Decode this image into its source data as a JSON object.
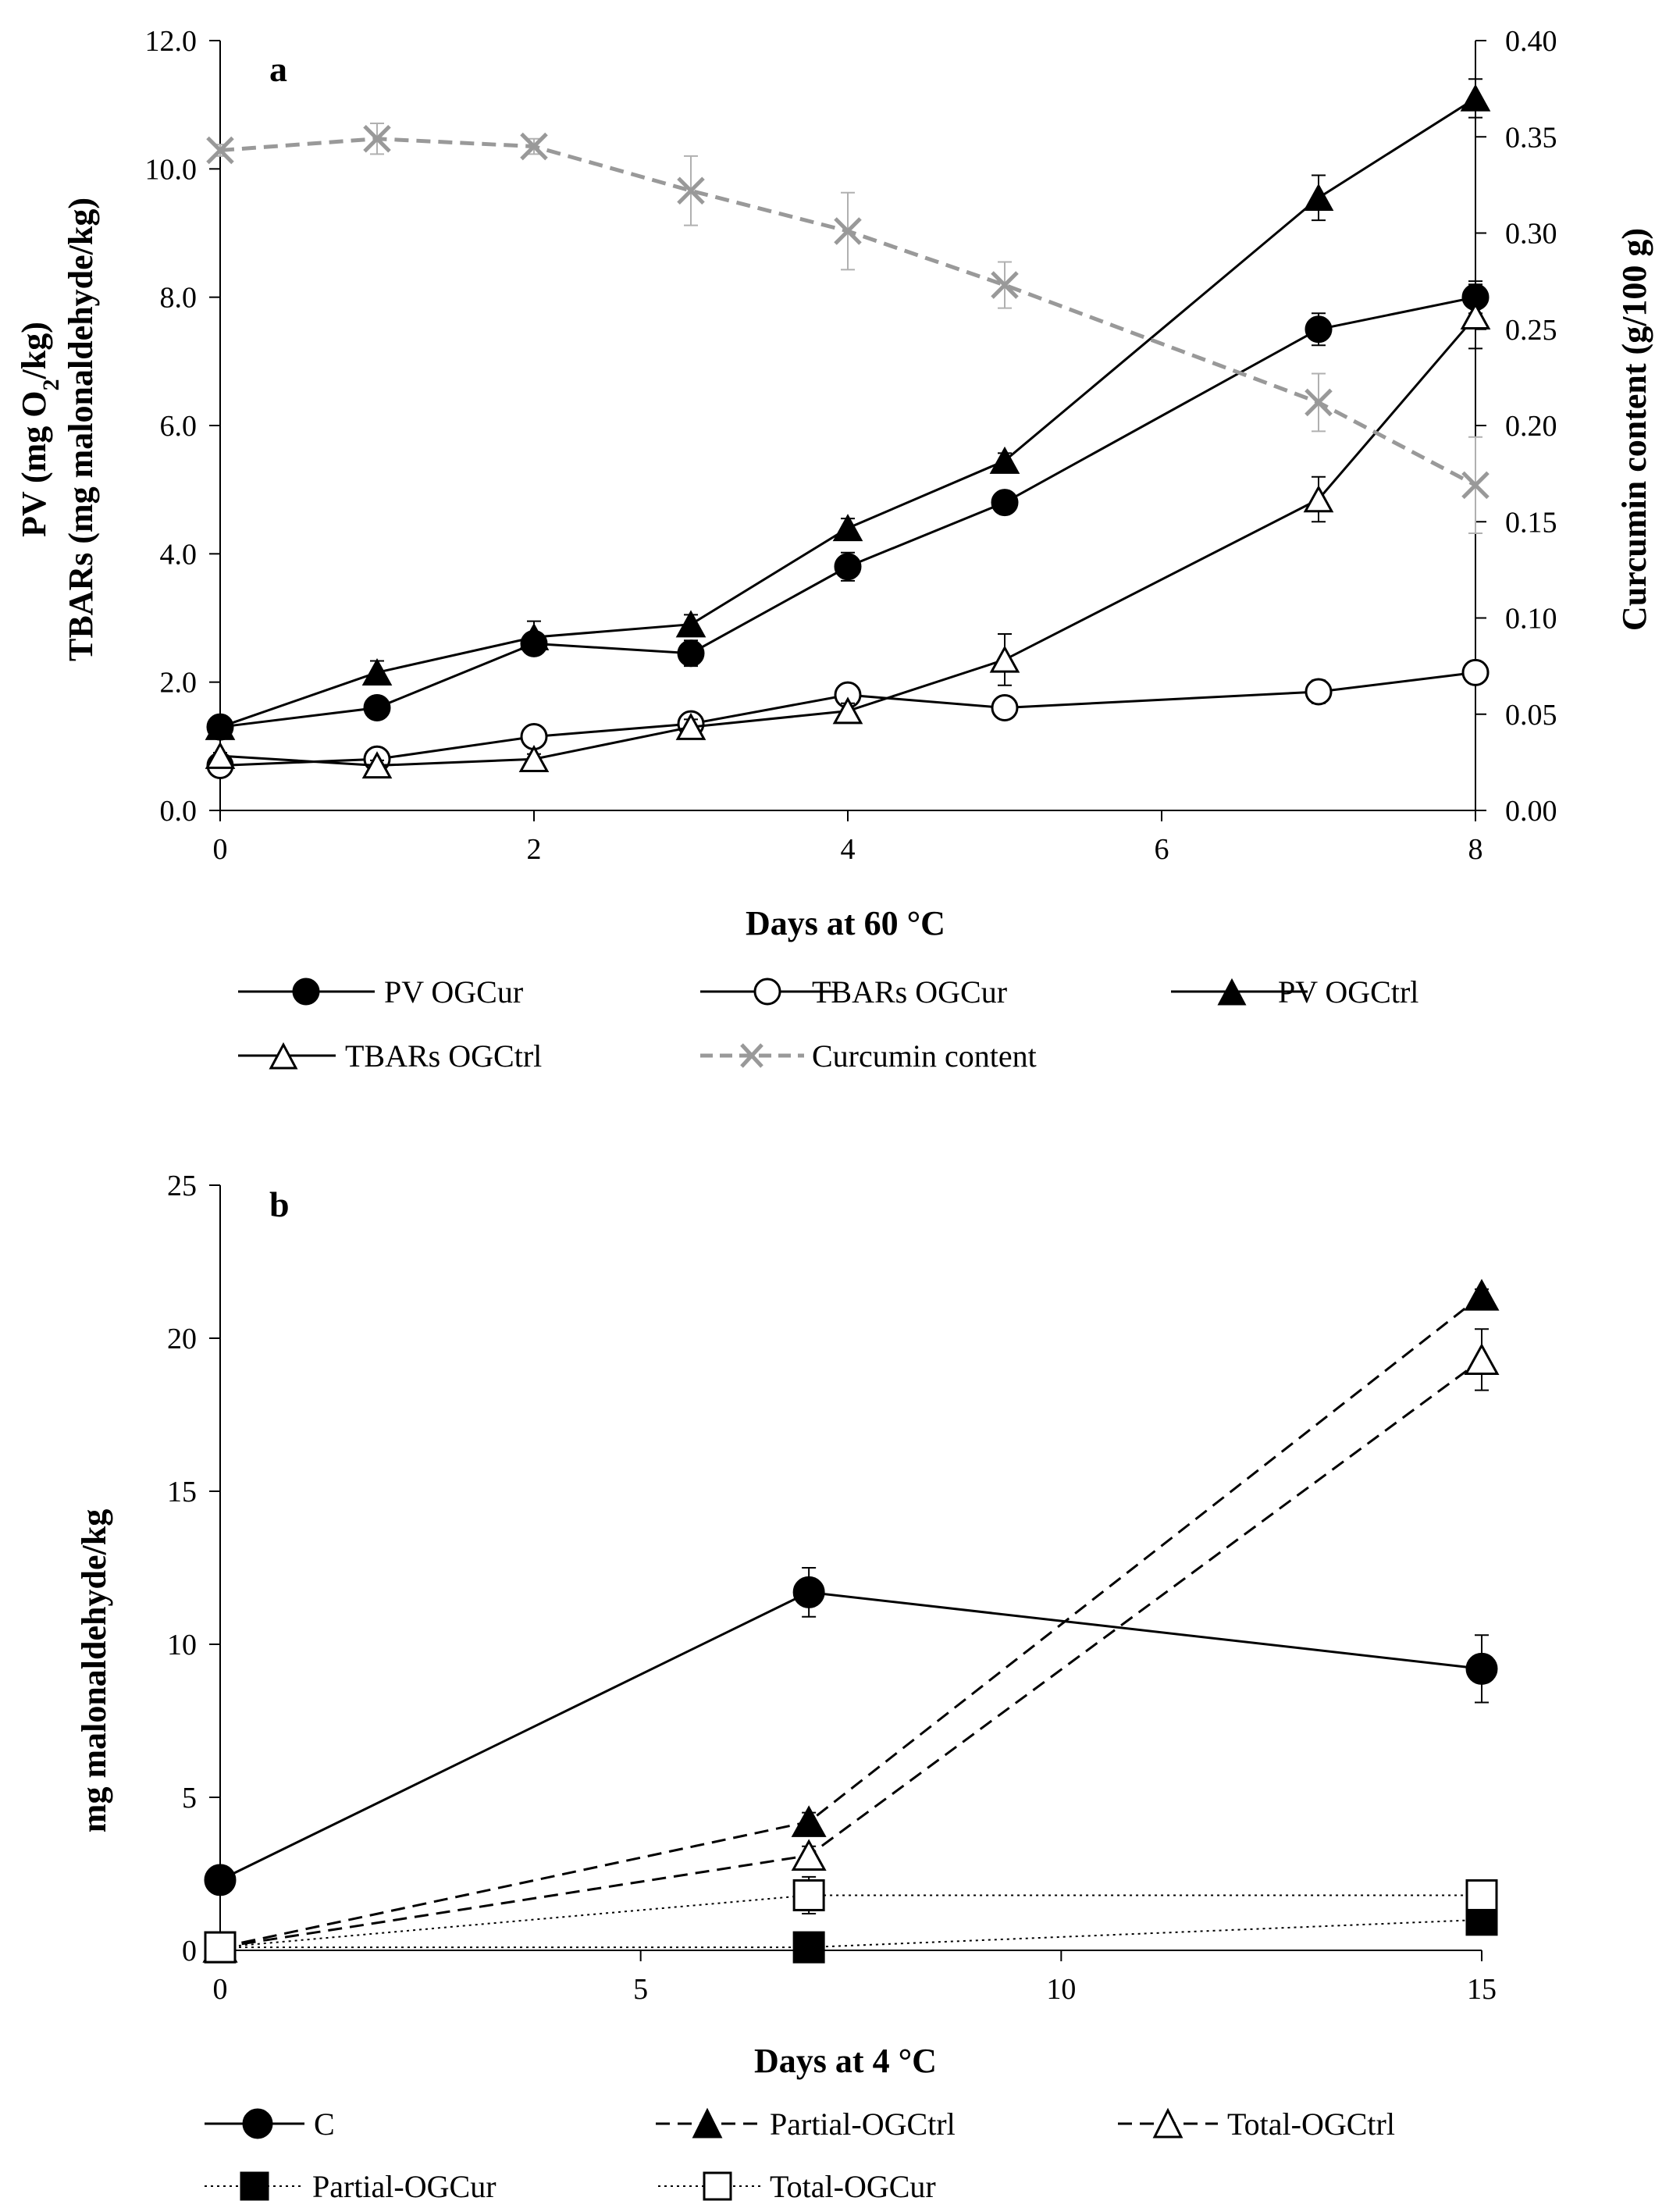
{
  "chart_data": [
    {
      "type": "line",
      "panel_label": "a",
      "xlabel": "Days at 60 °C",
      "ylabel_line1": "PV (mg O",
      "ylabel_sub": "2",
      "ylabel_line1_end": "/kg)",
      "ylabel_line2": "TBARs (mg malonaldehyde/kg)",
      "y2label": "Curcumin content (g/100 g)",
      "xlim": [
        0,
        8
      ],
      "ylim": [
        0,
        12
      ],
      "y2lim": [
        0,
        0.4
      ],
      "x_ticks": [
        0,
        2,
        4,
        6,
        8
      ],
      "x_tick_labels": [
        "0",
        "2",
        "4",
        "6",
        "8"
      ],
      "y_ticks": [
        0,
        2,
        4,
        6,
        8,
        10,
        12
      ],
      "y_tick_labels": [
        "0.0",
        "2.0",
        "4.0",
        "6.0",
        "8.0",
        "10.0",
        "12.0"
      ],
      "y2_ticks": [
        0,
        0.05,
        0.1,
        0.15,
        0.2,
        0.25,
        0.3,
        0.35,
        0.4
      ],
      "y2_tick_labels": [
        "0.00",
        "0.05",
        "0.10",
        "0.15",
        "0.20",
        "0.25",
        "0.30",
        "0.35",
        "0.40"
      ],
      "grid": false,
      "legend_position": "bottom",
      "series": [
        {
          "name": "PV OGCur",
          "marker": "circle-filled",
          "line": "solid",
          "color": "#000000",
          "axis": "left",
          "x": [
            0,
            1,
            2,
            3,
            4,
            5,
            7,
            8
          ],
          "values": [
            1.3,
            1.6,
            2.6,
            2.45,
            3.8,
            4.8,
            7.5,
            8.0
          ],
          "errors": [
            0.1,
            0.1,
            0.12,
            0.2,
            0.22,
            0.15,
            0.25,
            0.25
          ]
        },
        {
          "name": "TBARs OGCur",
          "marker": "circle-open",
          "line": "solid",
          "color": "#000000",
          "axis": "left",
          "x": [
            0,
            1,
            2,
            3,
            4,
            5,
            7,
            8
          ],
          "values": [
            0.7,
            0.8,
            1.15,
            1.35,
            1.8,
            1.6,
            1.85,
            2.15
          ],
          "errors": [
            0.05,
            0.1,
            0.08,
            0.12,
            0.15,
            0.1,
            0.18,
            0.15
          ]
        },
        {
          "name": "PV OGCtrl",
          "marker": "triangle-filled",
          "line": "solid",
          "color": "#000000",
          "axis": "left",
          "x": [
            0,
            1,
            2,
            3,
            4,
            5,
            7,
            8
          ],
          "values": [
            1.3,
            2.15,
            2.7,
            2.9,
            4.4,
            5.45,
            9.55,
            11.1
          ],
          "errors": [
            0.1,
            0.18,
            0.25,
            0.15,
            0.15,
            0.12,
            0.35,
            0.3
          ]
        },
        {
          "name": "TBARs OGCtrl",
          "marker": "triangle-open",
          "line": "solid",
          "color": "#000000",
          "axis": "left",
          "x": [
            0,
            1,
            2,
            3,
            4,
            5,
            7,
            8
          ],
          "values": [
            0.85,
            0.7,
            0.8,
            1.3,
            1.55,
            2.35,
            4.85,
            7.7
          ],
          "errors": [
            0.05,
            0.08,
            0.08,
            0.12,
            0.12,
            0.4,
            0.35,
            0.5
          ]
        },
        {
          "name": "Curcumin content",
          "marker": "x",
          "line": "dashed",
          "color": "#999999",
          "axis": "right",
          "x": [
            0,
            1,
            2,
            3,
            4,
            5,
            7,
            8
          ],
          "values": [
            0.343,
            0.349,
            0.345,
            0.322,
            0.301,
            0.273,
            0.212,
            0.169
          ],
          "errors": [
            0.003,
            0.008,
            0.004,
            0.018,
            0.02,
            0.012,
            0.015,
            0.025
          ]
        }
      ]
    },
    {
      "type": "line",
      "panel_label": "b",
      "xlabel": "Days at 4 °C",
      "ylabel": "mg malonaldehyde/kg",
      "xlim": [
        0,
        15
      ],
      "ylim": [
        0,
        25
      ],
      "x_ticks": [
        0,
        5,
        10,
        15
      ],
      "x_tick_labels": [
        "0",
        "5",
        "10",
        "15"
      ],
      "y_ticks": [
        0,
        5,
        10,
        15,
        20,
        25
      ],
      "y_tick_labels": [
        "0",
        "5",
        "10",
        "15",
        "20",
        "25"
      ],
      "grid": false,
      "legend_position": "bottom",
      "series": [
        {
          "name": "C",
          "marker": "circle-filled",
          "line": "solid",
          "color": "#000000",
          "x": [
            0,
            7,
            15
          ],
          "values": [
            2.3,
            11.7,
            9.2
          ],
          "errors": [
            0.1,
            0.8,
            1.1
          ]
        },
        {
          "name": "Partial-OGCtrl",
          "marker": "triangle-filled",
          "line": "dashed",
          "color": "#000000",
          "x": [
            0,
            7,
            15
          ],
          "values": [
            0.1,
            4.2,
            21.4
          ],
          "errors": [
            0.05,
            0.3,
            0.2
          ]
        },
        {
          "name": "Total-OGCtrl",
          "marker": "triangle-open",
          "line": "dashed",
          "color": "#000000",
          "x": [
            0,
            7,
            15
          ],
          "values": [
            0.1,
            3.1,
            19.3
          ],
          "errors": [
            0.05,
            0.3,
            1.0
          ]
        },
        {
          "name": "Partial-OGCur",
          "marker": "square-filled",
          "line": "dotted",
          "color": "#000000",
          "x": [
            0,
            7,
            15
          ],
          "values": [
            0.1,
            0.1,
            1.0
          ],
          "errors": [
            0.05,
            0.05,
            0.1
          ]
        },
        {
          "name": "Total-OGCur",
          "marker": "square-open",
          "line": "dotted",
          "color": "#000000",
          "x": [
            0,
            7,
            15
          ],
          "values": [
            0.1,
            1.8,
            1.8
          ],
          "errors": [
            0.05,
            0.6,
            0.1
          ]
        }
      ]
    }
  ]
}
